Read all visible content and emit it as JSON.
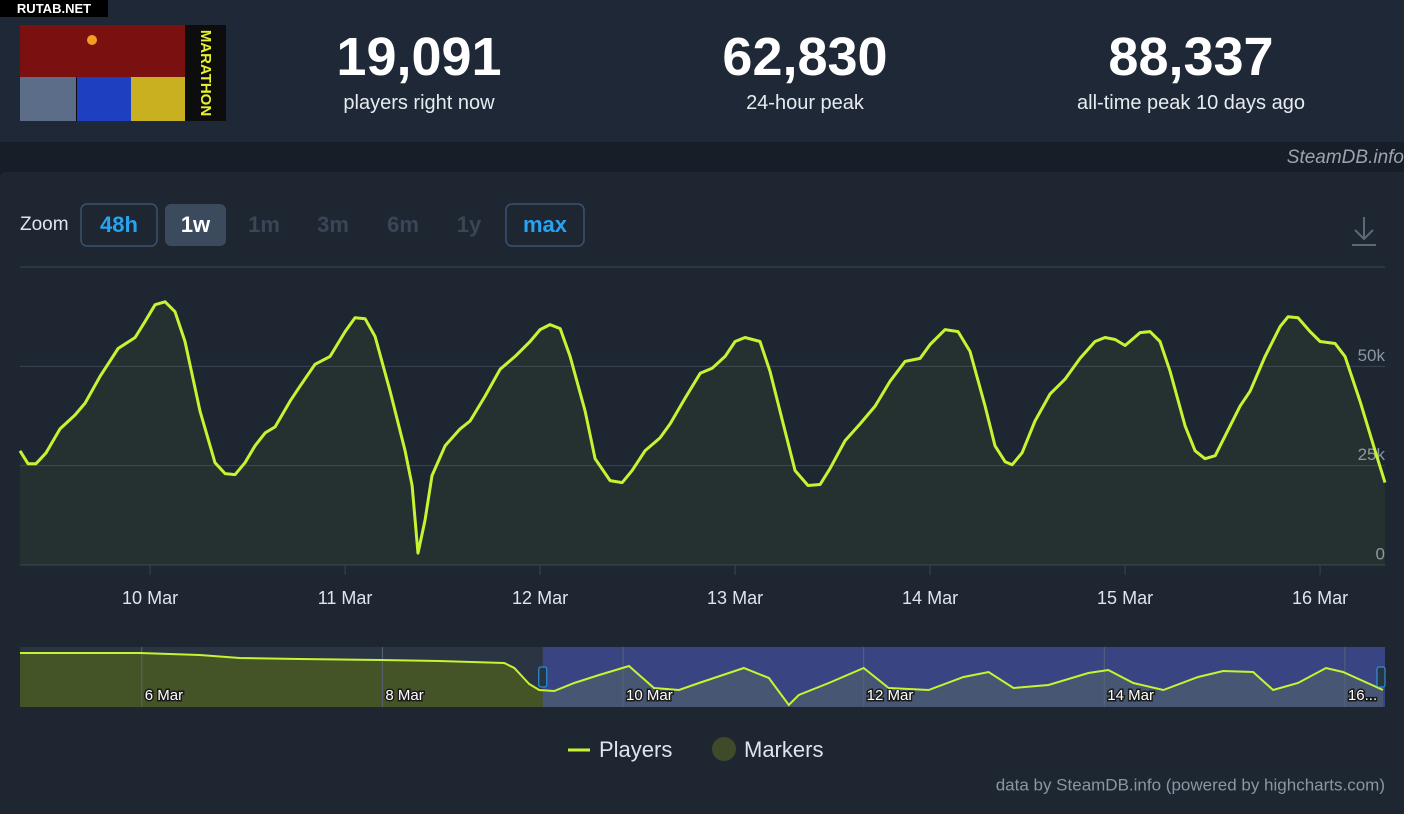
{
  "watermark": "RUTAB.NET",
  "header": {
    "logo_text": "MARATHON",
    "stats": [
      {
        "value": "19,091",
        "label": "players right now"
      },
      {
        "value": "62,830",
        "label": "24-hour peak"
      },
      {
        "value": "88,337",
        "label": "all-time peak 10 days ago"
      }
    ]
  },
  "source_tag": "SteamDB.info",
  "zoom": {
    "label": "Zoom",
    "buttons": [
      {
        "label": "48h",
        "state": "outlined"
      },
      {
        "label": "1w",
        "state": "active"
      },
      {
        "label": "1m",
        "state": "disabled"
      },
      {
        "label": "3m",
        "state": "disabled"
      },
      {
        "label": "6m",
        "state": "disabled"
      },
      {
        "label": "1y",
        "state": "disabled"
      },
      {
        "label": "max",
        "state": "outlined"
      }
    ]
  },
  "chart_data": [
    {
      "type": "line",
      "grid": true,
      "xlim": [
        9.333,
        16.333
      ],
      "xticks": [
        {
          "value": 10,
          "label": "10 Mar"
        },
        {
          "value": 11,
          "label": "11 Mar"
        },
        {
          "value": 12,
          "label": "12 Mar"
        },
        {
          "value": 13,
          "label": "13 Mar"
        },
        {
          "value": 14,
          "label": "14 Mar"
        },
        {
          "value": 15,
          "label": "15 Mar"
        },
        {
          "value": 16,
          "label": "16 Mar"
        }
      ],
      "ylim": [
        0,
        75000
      ],
      "yticks": [
        0,
        {
          "value": 25000,
          "label": "25k"
        },
        {
          "value": 50000,
          "label": "50k"
        }
      ],
      "series": [
        {
          "name": "Players",
          "color": "#c6f432",
          "x": [
            9.333,
            9.374,
            9.415,
            9.467,
            9.538,
            9.615,
            9.667,
            9.744,
            9.836,
            9.923,
            9.974,
            10.026,
            10.077,
            10.128,
            10.179,
            10.256,
            10.333,
            10.385,
            10.436,
            10.487,
            10.538,
            10.59,
            10.641,
            10.718,
            10.769,
            10.846,
            10.923,
            11,
            11.051,
            11.103,
            11.154,
            11.231,
            11.308,
            11.344,
            11.374,
            11.41,
            11.446,
            11.513,
            11.59,
            11.641,
            11.718,
            11.795,
            11.872,
            11.949,
            12,
            12.051,
            12.103,
            12.154,
            12.231,
            12.282,
            12.359,
            12.421,
            12.472,
            12.538,
            12.615,
            12.667,
            12.744,
            12.821,
            12.882,
            12.949,
            13,
            13.051,
            13.128,
            13.179,
            13.256,
            13.308,
            13.374,
            13.436,
            13.487,
            13.564,
            13.641,
            13.718,
            13.795,
            13.872,
            13.949,
            14,
            14.077,
            14.144,
            14.205,
            14.282,
            14.333,
            14.385,
            14.421,
            14.472,
            14.538,
            14.615,
            14.692,
            14.769,
            14.846,
            14.897,
            14.949,
            15,
            15.077,
            15.128,
            15.179,
            15.231,
            15.308,
            15.359,
            15.41,
            15.462,
            15.513,
            15.59,
            15.641,
            15.718,
            15.795,
            15.836,
            15.887,
            15.949,
            16,
            16.077,
            16.128,
            16.205,
            16.282,
            16.333
          ],
          "values": [
            28750,
            25500,
            25500,
            28250,
            34250,
            37750,
            40750,
            47500,
            54500,
            57250,
            61250,
            65500,
            66250,
            63750,
            56250,
            38750,
            25750,
            23000,
            22750,
            25750,
            30000,
            33250,
            34750,
            41250,
            45000,
            50500,
            52500,
            58750,
            62250,
            62000,
            57500,
            43750,
            28750,
            20000,
            3000,
            11250,
            22500,
            30000,
            34250,
            36250,
            42500,
            49250,
            52500,
            56250,
            59250,
            60500,
            59500,
            52500,
            38750,
            26750,
            21250,
            20750,
            23750,
            28750,
            32000,
            35500,
            42000,
            48250,
            49500,
            52500,
            56250,
            57250,
            56250,
            48750,
            33750,
            23750,
            20000,
            20250,
            24250,
            31250,
            35500,
            40000,
            46250,
            51250,
            52000,
            55500,
            59250,
            58750,
            53750,
            40000,
            30000,
            26000,
            25250,
            28250,
            36250,
            43000,
            46750,
            52000,
            56250,
            57250,
            56750,
            55250,
            58500,
            58750,
            56250,
            48750,
            35000,
            28750,
            26750,
            27500,
            32500,
            40000,
            43750,
            52500,
            60000,
            62500,
            62250,
            58750,
            56250,
            55750,
            52500,
            41250,
            28750,
            20750
          ]
        },
        {
          "name": "Markers",
          "color": "#3e4a28",
          "values": []
        }
      ]
    },
    {
      "type": "area",
      "xlim": [
        4.988,
        16.333
      ],
      "xticks": [
        {
          "value": 6,
          "label": "6 Mar"
        },
        {
          "value": 8,
          "label": "8 Mar"
        },
        {
          "value": 10,
          "label": "10 Mar"
        },
        {
          "value": 12,
          "label": "12 Mar"
        },
        {
          "value": 14,
          "label": "14 Mar"
        },
        {
          "value": 16,
          "label": "16..."
        }
      ],
      "ylim": [
        0,
        90000
      ],
      "series": [
        {
          "color": "#c6f432",
          "x": [
            4.988,
            5.984,
            6.482,
            6.814,
            7.311,
            7.975,
            8.473,
            9.013,
            9.096,
            9.22,
            9.303,
            9.428,
            9.594,
            9.801,
            10.05,
            10.257,
            10.465,
            10.631,
            11.004,
            11.212,
            11.378,
            11.461,
            11.71,
            12,
            12.208,
            12.54,
            12.83,
            13.038,
            13.245,
            13.536,
            13.867,
            14.033,
            14.241,
            14.49,
            14.78,
            14.988,
            15.237,
            15.403,
            15.61,
            15.843,
            15.984,
            16.316
          ],
          "values": [
            81000,
            81000,
            78000,
            73500,
            72000,
            70500,
            69000,
            66000,
            58500,
            34500,
            25500,
            24000,
            36000,
            48000,
            61500,
            28500,
            25500,
            36000,
            58500,
            43500,
            3000,
            18000,
            36000,
            58500,
            28500,
            25500,
            45000,
            52500,
            28500,
            33000,
            51000,
            55500,
            36000,
            25500,
            45000,
            54000,
            52500,
            25500,
            36000,
            58500,
            52500,
            25500
          ]
        }
      ]
    }
  ],
  "credit": "data by SteamDB.info (powered by highcharts.com)"
}
